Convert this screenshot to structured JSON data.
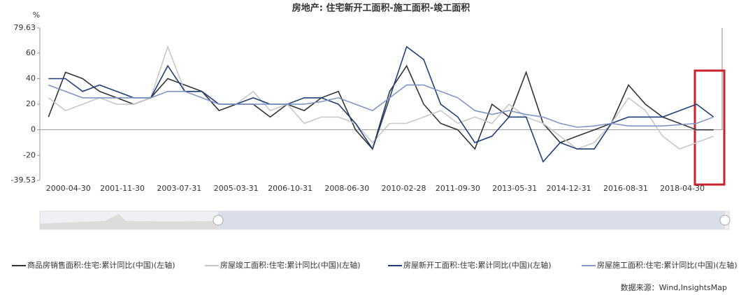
{
  "chart_data": {
    "type": "line",
    "title": "房地产: 住宅新开工面积-施工面积-竣工面积",
    "y_label": "%",
    "x": [
      "1999-09-30",
      "2000-03-31",
      "2000-09-30",
      "2001-03-31",
      "2001-09-30",
      "2002-03-31",
      "2002-09-30",
      "2003-03-31",
      "2003-09-30",
      "2004-03-31",
      "2004-09-30",
      "2005-03-31",
      "2005-09-30",
      "2006-03-31",
      "2006-09-30",
      "2007-03-31",
      "2007-09-30",
      "2008-03-31",
      "2008-09-30",
      "2009-03-31",
      "2009-09-30",
      "2010-03-31",
      "2010-09-30",
      "2011-03-31",
      "2011-09-30",
      "2012-03-31",
      "2012-09-30",
      "2013-03-31",
      "2013-09-30",
      "2014-03-31",
      "2014-09-30",
      "2015-03-31",
      "2015-09-30",
      "2016-03-31",
      "2016-09-30",
      "2017-03-31",
      "2017-09-30",
      "2018-03-31",
      "2018-09-30",
      "2019-03-31"
    ],
    "series": [
      {
        "name": "商品房销售面积:住宅:累计同比(中国)(左轴)",
        "color": "#333333",
        "values": [
          10,
          45,
          40,
          30,
          25,
          20,
          25,
          40,
          35,
          30,
          15,
          20,
          20,
          10,
          20,
          15,
          25,
          30,
          0,
          -15,
          30,
          50,
          20,
          5,
          0,
          -15,
          20,
          10,
          45,
          5,
          -10,
          -5,
          0,
          5,
          35,
          20,
          10,
          5,
          0,
          0
        ]
      },
      {
        "name": "房屋竣工面积:住宅:累计同比(中国)(左轴)",
        "color": "#c8c8c8",
        "values": [
          25,
          15,
          20,
          25,
          20,
          20,
          25,
          65,
          30,
          30,
          20,
          20,
          30,
          15,
          20,
          5,
          10,
          10,
          5,
          -10,
          5,
          5,
          10,
          15,
          5,
          10,
          5,
          20,
          10,
          5,
          -5,
          -15,
          -10,
          5,
          25,
          15,
          -5,
          -15,
          -10,
          -5
        ]
      },
      {
        "name": "房屋新开工面积:住宅:累计同比(中国)(左轴)",
        "color": "#1f3f7a",
        "values": [
          40,
          40,
          30,
          35,
          30,
          25,
          25,
          50,
          30,
          30,
          20,
          20,
          25,
          20,
          20,
          25,
          25,
          20,
          5,
          -15,
          25,
          65,
          55,
          20,
          10,
          -10,
          -5,
          10,
          10,
          -25,
          -10,
          -15,
          -15,
          5,
          10,
          10,
          10,
          15,
          20,
          10
        ]
      },
      {
        "name": "房屋施工面积:住宅:累计同比(中国)(左轴)",
        "color": "#7f96c8",
        "values": [
          35,
          30,
          25,
          25,
          25,
          25,
          25,
          30,
          30,
          25,
          20,
          20,
          20,
          20,
          20,
          20,
          22,
          25,
          20,
          15,
          25,
          35,
          35,
          30,
          25,
          15,
          12,
          15,
          12,
          10,
          5,
          2,
          3,
          5,
          3,
          3,
          3,
          4,
          5,
          10
        ]
      }
    ],
    "xlim": [
      "1999-06-30",
      "2019-06-30"
    ],
    "xticks": [
      "2000-04-30",
      "2001-11-30",
      "2003-07-31",
      "2005-03-31",
      "2006-10-31",
      "2008-06-30",
      "2010-02-28",
      "2011-09-30",
      "2013-05-31",
      "2014-12-31",
      "2016-08-31",
      "2018-04-30"
    ],
    "ylim": [
      -39.53,
      79.63
    ],
    "yticks": [
      -39.53,
      -20,
      0,
      20,
      40,
      60,
      79.63
    ],
    "grid": false,
    "source": "数据来源：Wind,InsightsMap"
  }
}
